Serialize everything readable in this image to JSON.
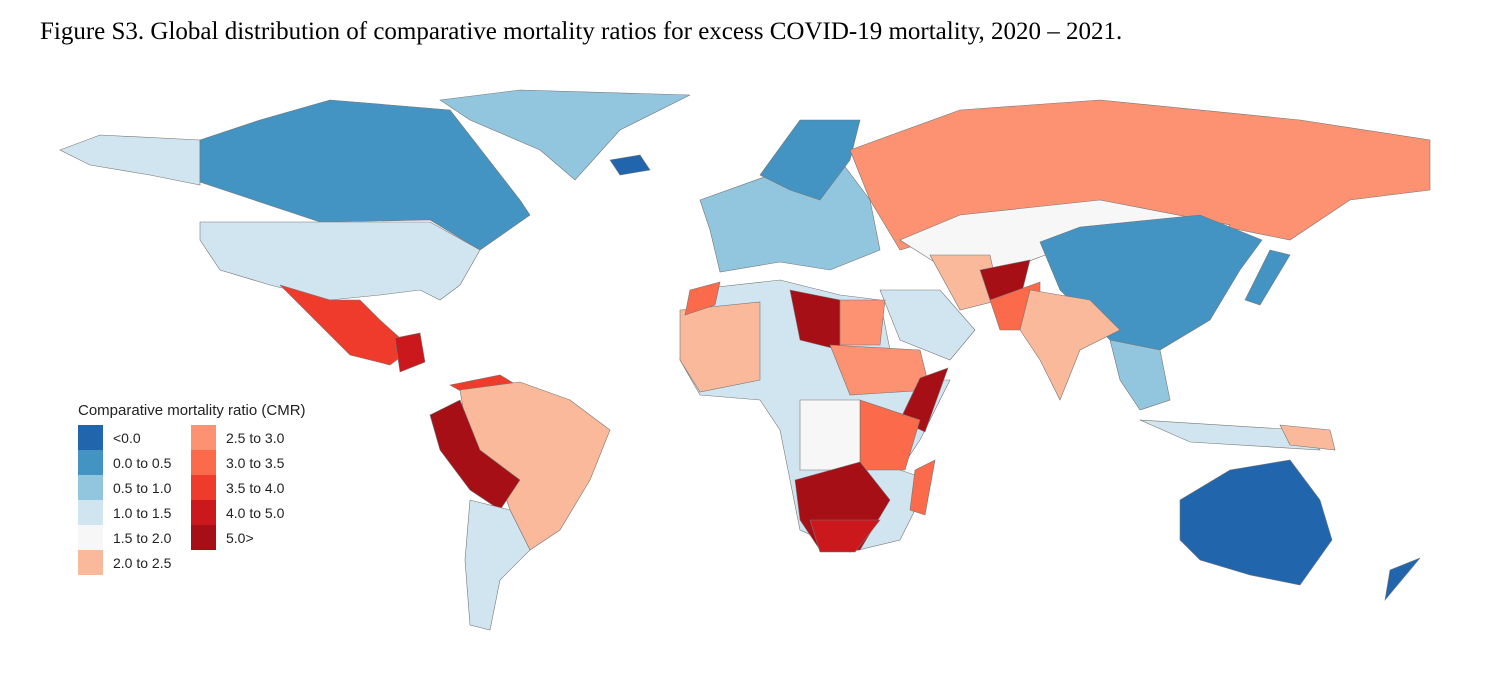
{
  "title": "Figure S3. Global distribution of comparative mortality ratios for excess COVID-19 mortality, 2020 – 2021.",
  "legend": {
    "title": "Comparative mortality ratio (CMR)",
    "items": [
      {
        "label": "<0.0",
        "color": "#2166ac"
      },
      {
        "label": "0.0 to 0.5",
        "color": "#4393c3"
      },
      {
        "label": "0.5 to 1.0",
        "color": "#92c5de"
      },
      {
        "label": "1.0 to 1.5",
        "color": "#d1e5f0"
      },
      {
        "label": "1.5 to 2.0",
        "color": "#f7f7f7"
      },
      {
        "label": "2.0 to 2.5",
        "color": "#f9b99a"
      },
      {
        "label": "2.5 to 3.0",
        "color": "#fc9272"
      },
      {
        "label": "3.0 to 3.5",
        "color": "#fb6a4a"
      },
      {
        "label": "3.5 to 4.0",
        "color": "#ef3b2c"
      },
      {
        "label": "4.0 to 5.0",
        "color": "#cb181d"
      },
      {
        "label": "5.0>",
        "color": "#a50f15"
      }
    ]
  }
}
